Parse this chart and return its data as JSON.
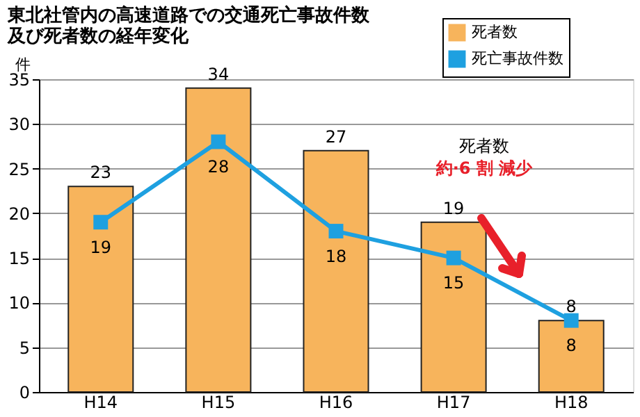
{
  "chart_data": {
    "type": "bar",
    "title": "東北社管内の高速道路での交通死亡事故件数及び死者数の経年変化",
    "ylabel": "件",
    "categories": [
      "H14",
      "H15",
      "H16",
      "H17",
      "H18"
    ],
    "series": [
      {
        "name": "死者数",
        "color": "#f7b45c",
        "values": [
          23,
          34,
          27,
          19,
          8
        ]
      },
      {
        "name": "死亡事故件数",
        "type": "line",
        "color": "#1ea0e0",
        "values": [
          19,
          28,
          18,
          15,
          8
        ]
      }
    ],
    "ylim": [
      0,
      35
    ],
    "yticks": [
      0,
      5,
      10,
      15,
      20,
      25,
      30,
      35
    ],
    "grid": "y",
    "legend": "top right",
    "marker": "square",
    "data_labels": true,
    "annotations": [
      "死者数",
      "約·6 割 減少"
    ]
  }
}
